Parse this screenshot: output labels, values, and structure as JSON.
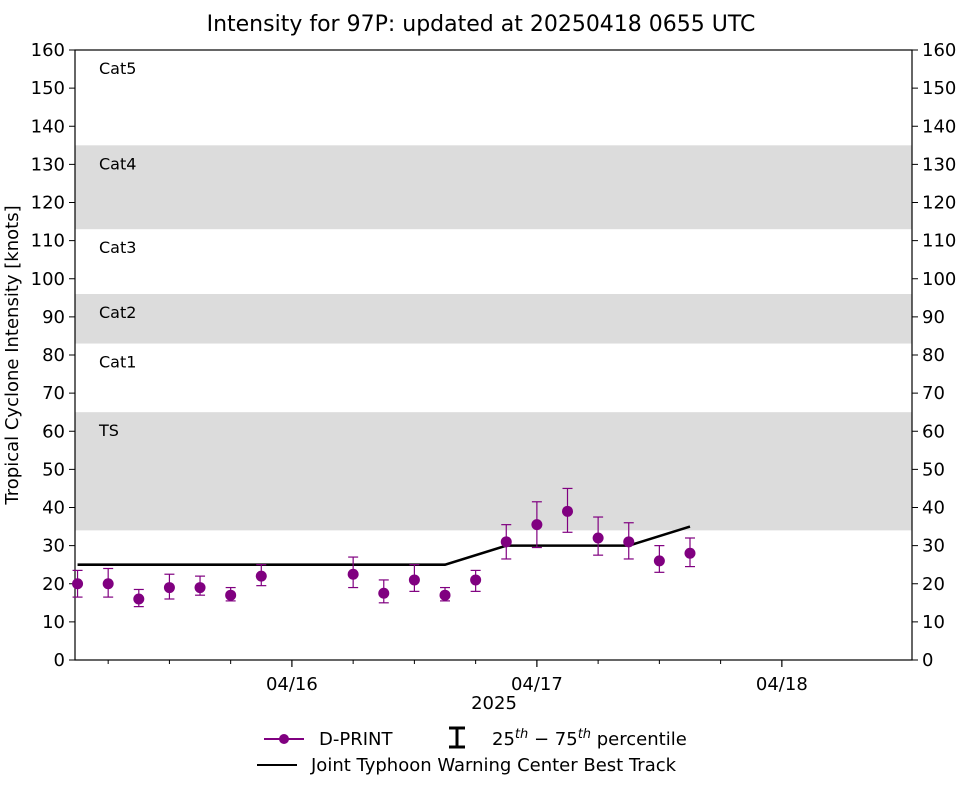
{
  "chart_data": {
    "type": "scatter",
    "title": "Intensity for 97P: updated at 20250418 0655 UTC",
    "xlabel": "2025",
    "ylabel": "Tropical Cyclone Intensity [knots]",
    "ylim": [
      0,
      160
    ],
    "xlim_hours": [
      -18.5,
      145.5
    ],
    "y_ticks": [
      0,
      10,
      20,
      30,
      40,
      50,
      60,
      70,
      80,
      90,
      100,
      110,
      120,
      130,
      140,
      150,
      160
    ],
    "x_major_ticks": [
      {
        "hour": 24,
        "label": "04/16"
      },
      {
        "hour": 72,
        "label": "04/17"
      },
      {
        "hour": 120,
        "label": "04/18"
      }
    ],
    "x_minor_tick_hours": [
      -12,
      0,
      12,
      36,
      48,
      60,
      84,
      96,
      108
    ],
    "category_bands": [
      {
        "label": "TS",
        "low": 34,
        "high": 65,
        "shaded": true
      },
      {
        "label": "Cat1",
        "low": 65,
        "high": 83,
        "shaded": false
      },
      {
        "label": "Cat2",
        "low": 83,
        "high": 96,
        "shaded": true
      },
      {
        "label": "Cat3",
        "low": 96,
        "high": 113,
        "shaded": false
      },
      {
        "label": "Cat4",
        "low": 113,
        "high": 135,
        "shaded": true
      },
      {
        "label": "Cat5",
        "low": 135,
        "high": 160,
        "shaded": false
      }
    ],
    "series": [
      {
        "name": "D-PRINT",
        "color": "#800080",
        "points": [
          {
            "hour": -18,
            "value": 20,
            "p25": 16.5,
            "p75": 23.5
          },
          {
            "hour": -12,
            "value": 20,
            "p25": 16.5,
            "p75": 24
          },
          {
            "hour": -6,
            "value": 16,
            "p25": 14,
            "p75": 18.5
          },
          {
            "hour": 0,
            "value": 19,
            "p25": 16,
            "p75": 22.5
          },
          {
            "hour": 6,
            "value": 19,
            "p25": 17,
            "p75": 22
          },
          {
            "hour": 12,
            "value": 17,
            "p25": 15.5,
            "p75": 19
          },
          {
            "hour": 18,
            "value": 22,
            "p25": 19.5,
            "p75": 25
          },
          {
            "hour": 36,
            "value": 22.5,
            "p25": 19,
            "p75": 27
          },
          {
            "hour": 42,
            "value": 17.5,
            "p25": 15,
            "p75": 21
          },
          {
            "hour": 48,
            "value": 21,
            "p25": 18,
            "p75": 25
          },
          {
            "hour": 54,
            "value": 17,
            "p25": 15.5,
            "p75": 19
          },
          {
            "hour": 60,
            "value": 21,
            "p25": 18,
            "p75": 23.5
          },
          {
            "hour": 66,
            "value": 31,
            "p25": 26.5,
            "p75": 35.5
          },
          {
            "hour": 72,
            "value": 35.5,
            "p25": 29.5,
            "p75": 41.5
          },
          {
            "hour": 78,
            "value": 39,
            "p25": 33.5,
            "p75": 45
          },
          {
            "hour": 84,
            "value": 32,
            "p25": 27.5,
            "p75": 37.5
          },
          {
            "hour": 90,
            "value": 31,
            "p25": 26.5,
            "p75": 36
          },
          {
            "hour": 96,
            "value": 26,
            "p25": 23,
            "p75": 30
          },
          {
            "hour": 102,
            "value": 28,
            "p25": 24.5,
            "p75": 32
          }
        ]
      },
      {
        "name": "Joint Typhoon Warning Center Best Track",
        "color": "#000000",
        "points": [
          {
            "hour": -18,
            "value": 25
          },
          {
            "hour": 54,
            "value": 25
          },
          {
            "hour": 66,
            "value": 30
          },
          {
            "hour": 90,
            "value": 30
          },
          {
            "hour": 102,
            "value": 35
          }
        ]
      }
    ],
    "legend": [
      {
        "label": "D-PRINT",
        "kind": "marker-line",
        "color": "#800080"
      },
      {
        "label_base": "25",
        "label_sup1": "th",
        "label_mid": " − 75",
        "label_sup2": "th",
        "label_tail": " percentile",
        "kind": "errorbar",
        "color": "#000000"
      },
      {
        "label": "Joint Typhoon Warning Center Best Track",
        "kind": "line",
        "color": "#000000"
      }
    ],
    "legend_position": "below"
  }
}
